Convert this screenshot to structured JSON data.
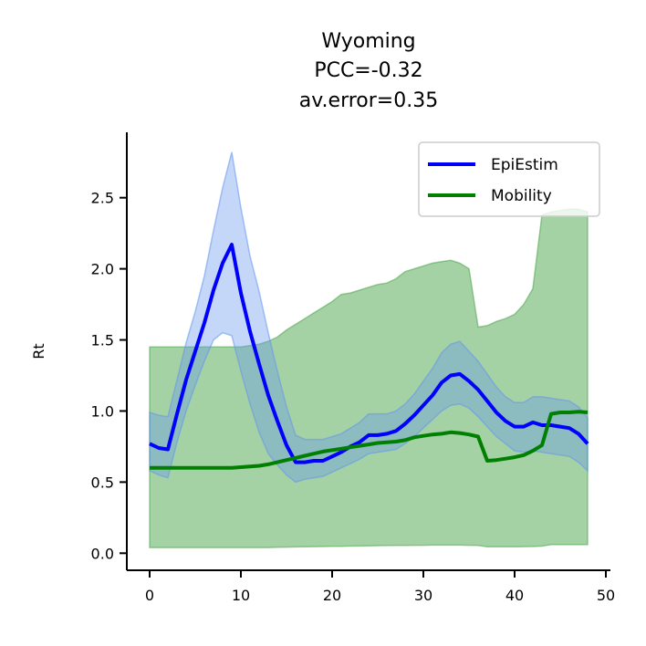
{
  "chart_data": {
    "type": "line",
    "title_lines": [
      "Wyoming",
      "PCC=-0.32",
      "av.error=0.35"
    ],
    "xlabel": "",
    "ylabel": "Rt",
    "xlim": [
      -2.5,
      50.5
    ],
    "ylim": [
      -0.12,
      2.96
    ],
    "xticks": [
      0,
      10,
      20,
      30,
      40,
      50
    ],
    "yticks": [
      0.0,
      0.5,
      1.0,
      1.5,
      2.0,
      2.5
    ],
    "xtick_labels": [
      "0",
      "10",
      "20",
      "30",
      "40",
      "50"
    ],
    "ytick_labels": [
      "0.0",
      "0.5",
      "1.0",
      "1.5",
      "2.0",
      "2.5"
    ],
    "legend_position": "top-right",
    "grid": false,
    "series": [
      {
        "name": "EpiEstim",
        "color": "#0000ff",
        "band_color": "#6495ed",
        "x": [
          0,
          1,
          2,
          3,
          4,
          5,
          6,
          7,
          8,
          9,
          10,
          11,
          12,
          13,
          14,
          15,
          16,
          17,
          18,
          19,
          20,
          21,
          22,
          23,
          24,
          25,
          26,
          27,
          28,
          29,
          30,
          31,
          32,
          33,
          34,
          35,
          36,
          37,
          38,
          39,
          40,
          41,
          42,
          43,
          44,
          45,
          46,
          47,
          48
        ],
        "values": [
          0.77,
          0.74,
          0.73,
          0.98,
          1.22,
          1.42,
          1.62,
          1.85,
          2.04,
          2.17,
          1.83,
          1.56,
          1.33,
          1.11,
          0.93,
          0.76,
          0.64,
          0.64,
          0.65,
          0.65,
          0.68,
          0.71,
          0.75,
          0.78,
          0.83,
          0.83,
          0.84,
          0.86,
          0.91,
          0.97,
          1.04,
          1.11,
          1.2,
          1.25,
          1.26,
          1.21,
          1.15,
          1.07,
          0.99,
          0.93,
          0.89,
          0.89,
          0.92,
          0.9,
          0.9,
          0.89,
          0.88,
          0.84,
          0.77
        ],
        "lower": [
          0.58,
          0.55,
          0.53,
          0.78,
          1.0,
          1.18,
          1.35,
          1.5,
          1.55,
          1.53,
          1.28,
          1.05,
          0.85,
          0.7,
          0.62,
          0.55,
          0.5,
          0.52,
          0.53,
          0.54,
          0.57,
          0.6,
          0.63,
          0.66,
          0.7,
          0.71,
          0.72,
          0.73,
          0.77,
          0.82,
          0.88,
          0.94,
          1.0,
          1.04,
          1.05,
          1.02,
          0.96,
          0.89,
          0.82,
          0.77,
          0.72,
          0.71,
          0.72,
          0.71,
          0.7,
          0.69,
          0.68,
          0.64,
          0.58
        ],
        "upper": [
          0.99,
          0.97,
          0.96,
          1.22,
          1.48,
          1.7,
          1.95,
          2.27,
          2.57,
          2.82,
          2.43,
          2.09,
          1.84,
          1.55,
          1.28,
          1.03,
          0.83,
          0.8,
          0.8,
          0.8,
          0.82,
          0.84,
          0.88,
          0.92,
          0.98,
          0.98,
          0.98,
          1.0,
          1.05,
          1.12,
          1.21,
          1.3,
          1.41,
          1.47,
          1.49,
          1.42,
          1.35,
          1.26,
          1.17,
          1.1,
          1.06,
          1.06,
          1.1,
          1.1,
          1.09,
          1.08,
          1.07,
          1.03,
          0.95
        ]
      },
      {
        "name": "Mobility",
        "color": "#008000",
        "band_color": "#4ca64c",
        "x": [
          0,
          1,
          2,
          3,
          4,
          5,
          6,
          7,
          8,
          9,
          10,
          11,
          12,
          13,
          14,
          15,
          16,
          17,
          18,
          19,
          20,
          21,
          22,
          23,
          24,
          25,
          26,
          27,
          28,
          29,
          30,
          31,
          32,
          33,
          34,
          35,
          36,
          37,
          38,
          39,
          40,
          41,
          42,
          43,
          44,
          45,
          46,
          47,
          48
        ],
        "values": [
          0.6,
          0.6,
          0.6,
          0.6,
          0.6,
          0.6,
          0.6,
          0.6,
          0.6,
          0.6,
          0.605,
          0.61,
          0.615,
          0.625,
          0.64,
          0.655,
          0.67,
          0.685,
          0.7,
          0.715,
          0.725,
          0.735,
          0.745,
          0.755,
          0.765,
          0.775,
          0.78,
          0.785,
          0.795,
          0.815,
          0.825,
          0.835,
          0.84,
          0.85,
          0.845,
          0.835,
          0.82,
          0.65,
          0.655,
          0.665,
          0.675,
          0.69,
          0.72,
          0.76,
          0.98,
          0.99,
          0.99,
          0.995,
          0.99
        ],
        "lower": [
          0.04,
          0.04,
          0.04,
          0.04,
          0.04,
          0.04,
          0.04,
          0.04,
          0.04,
          0.04,
          0.04,
          0.04,
          0.04,
          0.04,
          0.042,
          0.043,
          0.044,
          0.045,
          0.046,
          0.047,
          0.048,
          0.049,
          0.05,
          0.051,
          0.052,
          0.053,
          0.054,
          0.055,
          0.055,
          0.056,
          0.056,
          0.057,
          0.057,
          0.057,
          0.057,
          0.056,
          0.055,
          0.045,
          0.045,
          0.045,
          0.045,
          0.046,
          0.047,
          0.05,
          0.06,
          0.06,
          0.06,
          0.06,
          0.06
        ],
        "upper": [
          1.45,
          1.45,
          1.45,
          1.45,
          1.45,
          1.45,
          1.45,
          1.45,
          1.45,
          1.45,
          1.45,
          1.46,
          1.47,
          1.49,
          1.52,
          1.57,
          1.61,
          1.65,
          1.69,
          1.73,
          1.77,
          1.82,
          1.83,
          1.85,
          1.87,
          1.89,
          1.9,
          1.93,
          1.98,
          2.0,
          2.02,
          2.04,
          2.05,
          2.06,
          2.04,
          2.0,
          1.59,
          1.6,
          1.63,
          1.65,
          1.68,
          1.75,
          1.86,
          2.38,
          2.4,
          2.41,
          2.42,
          2.42,
          2.4
        ]
      }
    ]
  }
}
